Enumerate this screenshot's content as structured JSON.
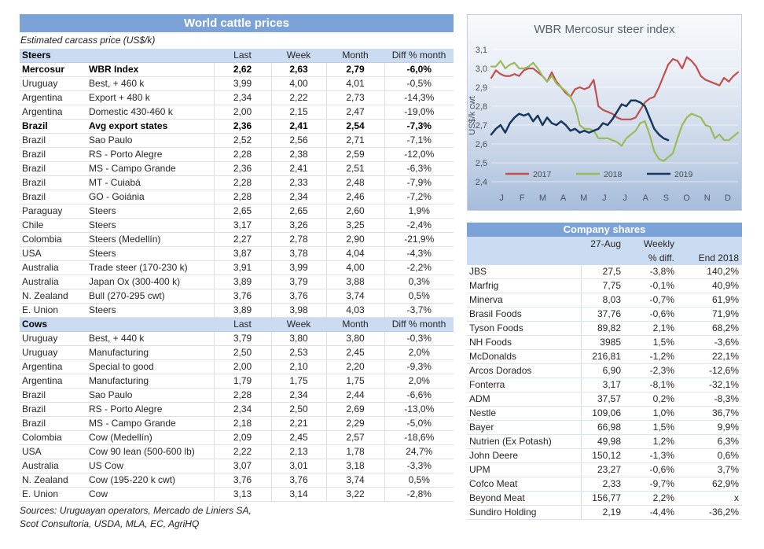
{
  "colors": {
    "header_blue": "#7ca3d8",
    "header_light_blue": "#cbdcf2",
    "series_2017": "#c0504d",
    "series_2018": "#9bbb59",
    "series_2019": "#17375e"
  },
  "left_table": {
    "title": "World cattle prices",
    "subtitle": "Estimated carcass price (US$/k)",
    "columns": [
      "Last",
      "Week",
      "Month",
      "Diff % month"
    ],
    "sections": [
      {
        "name": "Steers",
        "rows": [
          {
            "country": "Mercosur",
            "desc": "WBR Index",
            "last": "2,62",
            "week": "2,63",
            "month": "2,79",
            "diff": "-6,0%",
            "bold": true
          },
          {
            "country": "Uruguay",
            "desc": "Best, + 460 k",
            "last": "3,99",
            "week": "4,00",
            "month": "4,01",
            "diff": "-0,5%",
            "bold": false
          },
          {
            "country": "Argentina",
            "desc": "Export + 480 k",
            "last": "2,34",
            "week": "2,22",
            "month": "2,73",
            "diff": "-14,3%",
            "bold": false
          },
          {
            "country": "Argentina",
            "desc": "Domestic 430-460 k",
            "last": "2,00",
            "week": "2,15",
            "month": "2,47",
            "diff": "-19,0%",
            "bold": false
          },
          {
            "country": "Brazil",
            "desc": "Avg export states",
            "last": "2,36",
            "week": "2,41",
            "month": "2,54",
            "diff": "-7,3%",
            "bold": true
          },
          {
            "country": "Brazil",
            "desc": "Sao Paulo",
            "last": "2,52",
            "week": "2,56",
            "month": "2,71",
            "diff": "-7,1%",
            "bold": false
          },
          {
            "country": "Brazil",
            "desc": "RS - Porto Alegre",
            "last": "2,28",
            "week": "2,38",
            "month": "2,59",
            "diff": "-12,0%",
            "bold": false
          },
          {
            "country": "Brazil",
            "desc": "MS - Campo Grande",
            "last": "2,36",
            "week": "2,41",
            "month": "2,51",
            "diff": "-6,3%",
            "bold": false
          },
          {
            "country": "Brazil",
            "desc": "MT - Cuiabá",
            "last": "2,28",
            "week": "2,33",
            "month": "2,48",
            "diff": "-7,9%",
            "bold": false
          },
          {
            "country": "Brazil",
            "desc": "GO - Goiánia",
            "last": "2,28",
            "week": "2,34",
            "month": "2,46",
            "diff": "-7,2%",
            "bold": false
          },
          {
            "country": "Paraguay",
            "desc": "Steers",
            "last": "2,65",
            "week": "2,65",
            "month": "2,60",
            "diff": "1,9%",
            "bold": false
          },
          {
            "country": "Chile",
            "desc": "Steers",
            "last": "3,17",
            "week": "3,26",
            "month": "3,25",
            "diff": "-2,4%",
            "bold": false
          },
          {
            "country": "Colombia",
            "desc": "Steers (Medellín)",
            "last": "2,27",
            "week": "2,78",
            "month": "2,90",
            "diff": "-21,9%",
            "bold": false
          },
          {
            "country": "USA",
            "desc": "Steers",
            "last": "3,87",
            "week": "3,78",
            "month": "4,04",
            "diff": "-4,3%",
            "bold": false
          },
          {
            "country": "Australia",
            "desc": "Trade steer (170-230 k)",
            "last": "3,91",
            "week": "3,99",
            "month": "4,00",
            "diff": "-2,2%",
            "bold": false
          },
          {
            "country": "Australia",
            "desc": "Japan Ox (300-400 k)",
            "last": "3,89",
            "week": "3,79",
            "month": "3,88",
            "diff": "0,3%",
            "bold": false
          },
          {
            "country": "N. Zealand",
            "desc": "Bull (270-295 cwt)",
            "last": "3,76",
            "week": "3,76",
            "month": "3,74",
            "diff": "0,5%",
            "bold": false
          },
          {
            "country": "E. Union",
            "desc": "Steers",
            "last": "3,89",
            "week": "3,98",
            "month": "4,03",
            "diff": "-3,7%",
            "bold": false
          }
        ]
      },
      {
        "name": "Cows",
        "rows": [
          {
            "country": "Uruguay",
            "desc": "Best, + 440 k",
            "last": "3,79",
            "week": "3,80",
            "month": "3,80",
            "diff": "-0,3%",
            "bold": false
          },
          {
            "country": "Uruguay",
            "desc": "Manufacturing",
            "last": "2,50",
            "week": "2,53",
            "month": "2,45",
            "diff": "2,0%",
            "bold": false
          },
          {
            "country": "Argentina",
            "desc": "Special to good",
            "last": "2,00",
            "week": "2,10",
            "month": "2,20",
            "diff": "-9,3%",
            "bold": false
          },
          {
            "country": "Argentina",
            "desc": "Manufacturing",
            "last": "1,79",
            "week": "1,75",
            "month": "1,75",
            "diff": "2,0%",
            "bold": false
          },
          {
            "country": "Brazil",
            "desc": "Sao Paulo",
            "last": "2,28",
            "week": "2,34",
            "month": "2,44",
            "diff": "-6,6%",
            "bold": false
          },
          {
            "country": "Brazil",
            "desc": "RS - Porto Alegre",
            "last": "2,34",
            "week": "2,50",
            "month": "2,69",
            "diff": "-13,0%",
            "bold": false
          },
          {
            "country": "Brazil",
            "desc": "MS - Campo Grande",
            "last": "2,18",
            "week": "2,21",
            "month": "2,29",
            "diff": "-5,0%",
            "bold": false
          },
          {
            "country": "Colombia",
            "desc": "Cow (Medellín)",
            "last": "2,09",
            "week": "2,45",
            "month": "2,57",
            "diff": "-18,6%",
            "bold": false
          },
          {
            "country": "USA",
            "desc": "Cow 90 lean (500-600 lb)",
            "last": "2,22",
            "week": "2,13",
            "month": "1,78",
            "diff": "24,7%",
            "bold": false
          },
          {
            "country": "Australia",
            "desc": "US Cow",
            "last": "3,07",
            "week": "3,01",
            "month": "3,18",
            "diff": "-3,3%",
            "bold": false
          },
          {
            "country": "N. Zealand",
            "desc": "Cow (195-220 k cwt)",
            "last": "3,76",
            "week": "3,76",
            "month": "3,74",
            "diff": "0,5%",
            "bold": false
          },
          {
            "country": "E. Union",
            "desc": "Cow",
            "last": "3,13",
            "week": "3,14",
            "month": "3,22",
            "diff": "-2,8%",
            "bold": false
          }
        ]
      }
    ],
    "sources": [
      "Sources: Uruguayan operators, Mercado de Liniers SA,",
      "Scot Consultoria, USDA, MLA, EC, AgriHQ"
    ]
  },
  "chart_data": {
    "type": "line",
    "title": "WBR Mercosur steer index",
    "ylabel": "US$/k cwt",
    "ylim": [
      2.4,
      3.1
    ],
    "ytick_values": [
      3.1,
      3.0,
      2.9,
      2.8,
      2.7,
      2.6,
      2.5,
      2.4
    ],
    "ytick_labels": [
      "3,1",
      "3,0",
      "2,9",
      "2,8",
      "2,7",
      "2,6",
      "2,5",
      "2,4"
    ],
    "x_labels": [
      "J",
      "F",
      "M",
      "A",
      "M",
      "J",
      "J",
      "A",
      "S",
      "O",
      "N",
      "D"
    ],
    "grid": true,
    "legend_position": "inside-bottom-left",
    "series": [
      {
        "name": "2017",
        "color": "#c0504d",
        "values": [
          2.95,
          2.99,
          2.97,
          2.96,
          2.96,
          2.97,
          2.96,
          2.99,
          3.0,
          3.0,
          2.98,
          2.96,
          2.93,
          2.98,
          2.93,
          2.9,
          2.87,
          2.85,
          2.89,
          2.9,
          2.89,
          2.9,
          2.94,
          2.8,
          2.78,
          2.77,
          2.76,
          2.74,
          2.73,
          2.73,
          2.73,
          2.74,
          2.78,
          2.82,
          2.84,
          2.85,
          2.9,
          2.96,
          3.02,
          3.05,
          3.04,
          3.0,
          3.06,
          3.04,
          3.01,
          2.96,
          2.94,
          2.93,
          2.92,
          2.91,
          2.95,
          2.93,
          2.96,
          2.98
        ]
      },
      {
        "name": "2018",
        "color": "#9bbb59",
        "values": [
          3.01,
          3.01,
          3.04,
          3.0,
          3.02,
          3.03,
          3.0,
          3.0,
          3.01,
          3.03,
          3.0,
          2.96,
          2.93,
          2.96,
          2.92,
          2.9,
          2.88,
          2.85,
          2.8,
          2.7,
          2.68,
          2.68,
          2.67,
          2.63,
          2.63,
          2.63,
          2.62,
          2.61,
          2.59,
          2.63,
          2.65,
          2.67,
          2.71,
          2.72,
          2.65,
          2.56,
          2.52,
          2.51,
          2.53,
          2.55,
          2.63,
          2.7,
          2.74,
          2.76,
          2.75,
          2.74,
          2.7,
          2.69,
          2.63,
          2.65,
          2.62,
          2.62,
          2.64,
          2.66
        ]
      },
      {
        "name": "2019",
        "color": "#17375e",
        "values": [
          2.65,
          2.68,
          2.7,
          2.66,
          2.71,
          2.74,
          2.76,
          2.75,
          2.76,
          2.72,
          2.75,
          2.7,
          2.74,
          2.71,
          2.7,
          2.72,
          2.7,
          2.67,
          2.68,
          2.66,
          2.67,
          2.66,
          2.67,
          2.68,
          2.71,
          2.7,
          2.73,
          2.77,
          2.81,
          2.8,
          2.83,
          2.83,
          2.82,
          2.8,
          2.74,
          2.68,
          2.65,
          2.63,
          2.62
        ]
      }
    ]
  },
  "company_table": {
    "title": "Company shares",
    "header": {
      "date": "27-Aug",
      "weekly_line1": "Weekly",
      "weekly_line2": "% diff.",
      "end": "End 2018"
    },
    "rows": [
      {
        "name": "JBS",
        "price": "27,5",
        "weekly": "-3,8%",
        "end": "140,2%"
      },
      {
        "name": "Marfrig",
        "price": "7,75",
        "weekly": "-0,1%",
        "end": "40,9%"
      },
      {
        "name": "Minerva",
        "price": "8,03",
        "weekly": "-0,7%",
        "end": "61,9%"
      },
      {
        "name": "Brasil Foods",
        "price": "37,76",
        "weekly": "-0,6%",
        "end": "71,9%"
      },
      {
        "name": "Tyson Foods",
        "price": "89,82",
        "weekly": "2,1%",
        "end": "68,2%"
      },
      {
        "name": "NH Foods",
        "price": "3985",
        "weekly": "1,5%",
        "end": "-3,6%"
      },
      {
        "name": "McDonalds",
        "price": "216,81",
        "weekly": "-1,2%",
        "end": "22,1%"
      },
      {
        "name": "Arcos Dorados",
        "price": "6,90",
        "weekly": "-2,3%",
        "end": "-12,6%"
      },
      {
        "name": "Fonterra",
        "price": "3,17",
        "weekly": "-8,1%",
        "end": "-32,1%"
      },
      {
        "name": "ADM",
        "price": "37,57",
        "weekly": "0,2%",
        "end": "-8,3%"
      },
      {
        "name": "Nestle",
        "price": "109,06",
        "weekly": "1,0%",
        "end": "36,7%"
      },
      {
        "name": "Bayer",
        "price": "66,98",
        "weekly": "1,5%",
        "end": "9,9%"
      },
      {
        "name": "Nutrien (Ex Potash)",
        "price": "49,98",
        "weekly": "1,2%",
        "end": "6,3%"
      },
      {
        "name": "John Deere",
        "price": "150,12",
        "weekly": "-1,3%",
        "end": "0,6%"
      },
      {
        "name": "UPM",
        "price": "23,27",
        "weekly": "-0,6%",
        "end": "3,7%"
      },
      {
        "name": "Cofco Meat",
        "price": "2,33",
        "weekly": "-9,7%",
        "end": "62,9%"
      },
      {
        "name": "Beyond Meat",
        "price": "156,77",
        "weekly": "2,2%",
        "end": "x"
      },
      {
        "name": "Sundiro Holding",
        "price": "2,19",
        "weekly": "-4,4%",
        "end": "-36,2%"
      }
    ]
  }
}
